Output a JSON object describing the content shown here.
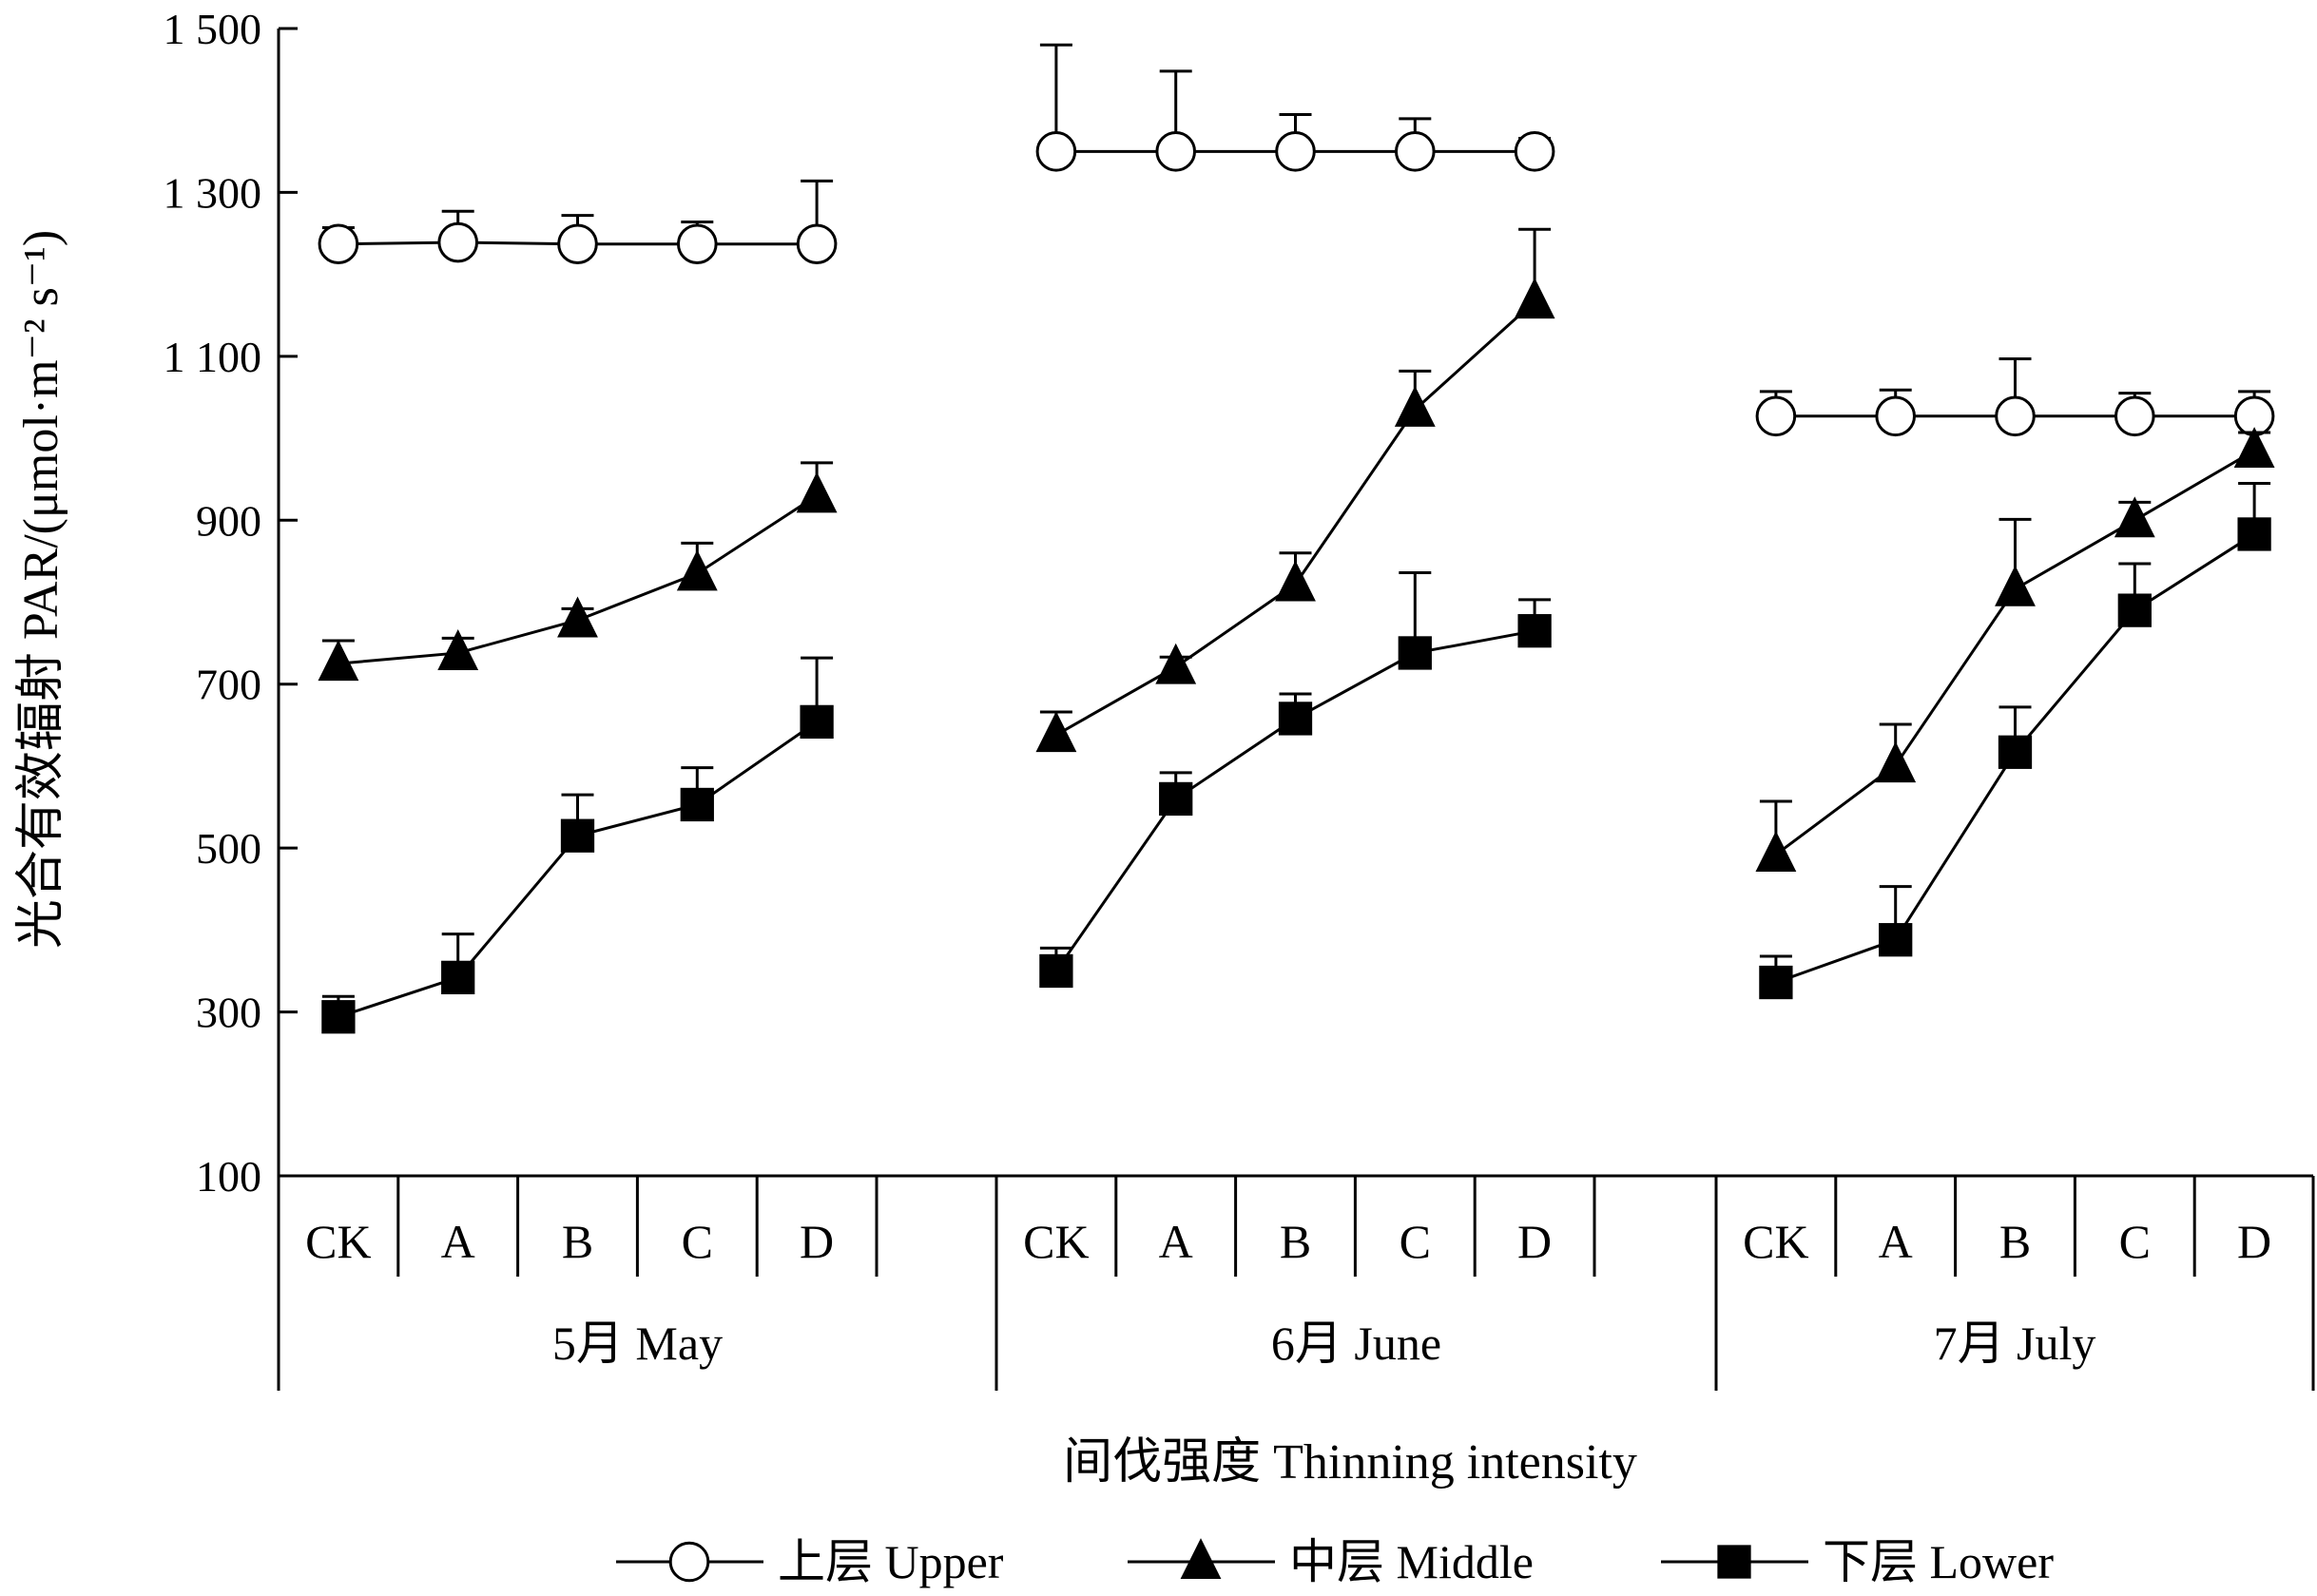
{
  "chart_data": {
    "type": "line",
    "xlabel": "间伐强度  Thinning intensity",
    "ylabel": "光合有效辐射  PAR/(μmol·m⁻² s⁻¹)",
    "ylim": [
      100,
      1500
    ],
    "yticks": [
      100,
      300,
      500,
      700,
      900,
      1100,
      1300,
      1500
    ],
    "ytick_labels": [
      "100",
      "300",
      "500",
      "700",
      "900",
      "1 100",
      "1 300",
      "1 500"
    ],
    "grid": false,
    "legend_position": "bottom",
    "categories": [
      "CK",
      "A",
      "B",
      "C",
      "D"
    ],
    "groups": [
      {
        "label": "5月  May",
        "series": [
          {
            "name": "上层  Upper",
            "marker": "open-circle",
            "values": [
              1237,
              1239,
              1237,
              1237,
              1237
            ],
            "errors": [
              20,
              38,
              35,
              27,
              77
            ]
          },
          {
            "name": "中层  Middle",
            "marker": "filled-triangle",
            "values": [
              725,
              738,
              778,
              835,
              930
            ],
            "errors": [
              28,
              18,
              14,
              37,
              40
            ]
          },
          {
            "name": "下层  Lower",
            "marker": "filled-square",
            "values": [
              294,
              342,
              515,
              553,
              654
            ],
            "errors": [
              25,
              53,
              50,
              45,
              78
            ]
          }
        ]
      },
      {
        "label": "6月  June",
        "series": [
          {
            "name": "上层  Upper",
            "marker": "open-circle",
            "values": [
              1350,
              1350,
              1350,
              1350,
              1350
            ],
            "errors": [
              130,
              98,
              45,
              40,
              16
            ]
          },
          {
            "name": "中层  Middle",
            "marker": "filled-triangle",
            "values": [
              638,
              721,
              822,
              1035,
              1167
            ],
            "errors": [
              28,
              12,
              38,
              47,
              88
            ]
          },
          {
            "name": "下层  Lower",
            "marker": "filled-square",
            "values": [
              350,
              560,
              658,
              738,
              765
            ],
            "errors": [
              28,
              32,
              30,
              98,
              38
            ]
          }
        ]
      },
      {
        "label": "7月  July",
        "series": [
          {
            "name": "上层  Upper",
            "marker": "open-circle",
            "values": [
              1027,
              1027,
              1027,
              1027,
              1027
            ],
            "errors": [
              30,
              32,
              70,
              28,
              30
            ]
          },
          {
            "name": "中层  Middle",
            "marker": "filled-triangle",
            "values": [
              492,
              601,
              816,
              900,
              985
            ],
            "errors": [
              65,
              50,
              85,
              22,
              22
            ]
          },
          {
            "name": "下层  Lower",
            "marker": "filled-square",
            "values": [
              336,
              388,
              617,
              790,
              883
            ],
            "errors": [
              32,
              65,
              55,
              57,
              62
            ]
          }
        ]
      }
    ],
    "legend": [
      {
        "label": "上层  Upper",
        "marker": "open-circle"
      },
      {
        "label": "中层  Middle",
        "marker": "filled-triangle"
      },
      {
        "label": "下层  Lower",
        "marker": "filled-square"
      }
    ]
  }
}
